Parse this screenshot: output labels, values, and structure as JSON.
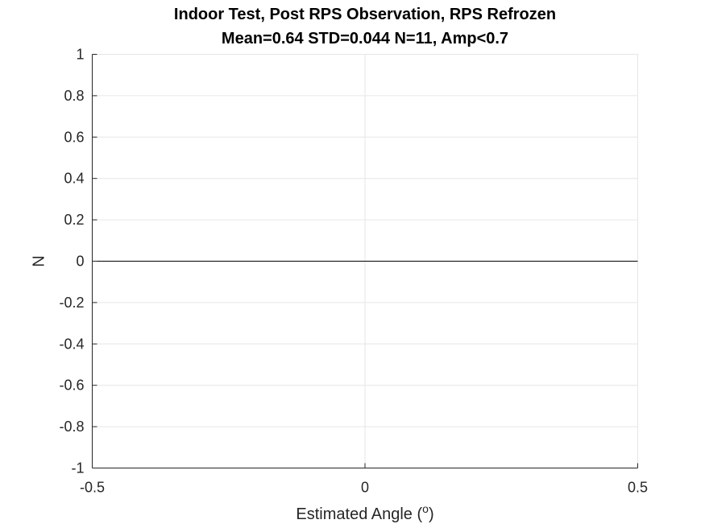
{
  "chart_data": {
    "type": "line",
    "title": [
      "Indoor Test, Post RPS Observation, RPS Refrozen",
      "Mean=0.64 STD=0.044 N=11, Amp<0.7"
    ],
    "xlabel_text": "Estimated Angle (",
    "xlabel_superscript": "o",
    "xlabel_close": ")",
    "ylabel": "N",
    "xlim": [
      -0.5,
      0.5
    ],
    "ylim": [
      -1,
      1
    ],
    "xticks": [
      -0.5,
      0,
      0.5
    ],
    "xtick_labels": [
      "-0.5",
      "0",
      "0.5"
    ],
    "yticks": [
      -1,
      -0.8,
      -0.6,
      -0.4,
      -0.2,
      0,
      0.2,
      0.4,
      0.6,
      0.8,
      1
    ],
    "ytick_labels": [
      "-1",
      "-0.8",
      "-0.6",
      "-0.4",
      "-0.2",
      "0",
      "0.2",
      "0.4",
      "0.6",
      "0.8",
      "1"
    ],
    "grid": true,
    "series": [
      {
        "x": [
          -0.5,
          0.5
        ],
        "y": [
          0,
          0
        ],
        "color": "#000000"
      }
    ],
    "colors": {
      "axis": "#262626",
      "grid": "#e6e6e6",
      "line": "#000000"
    }
  }
}
